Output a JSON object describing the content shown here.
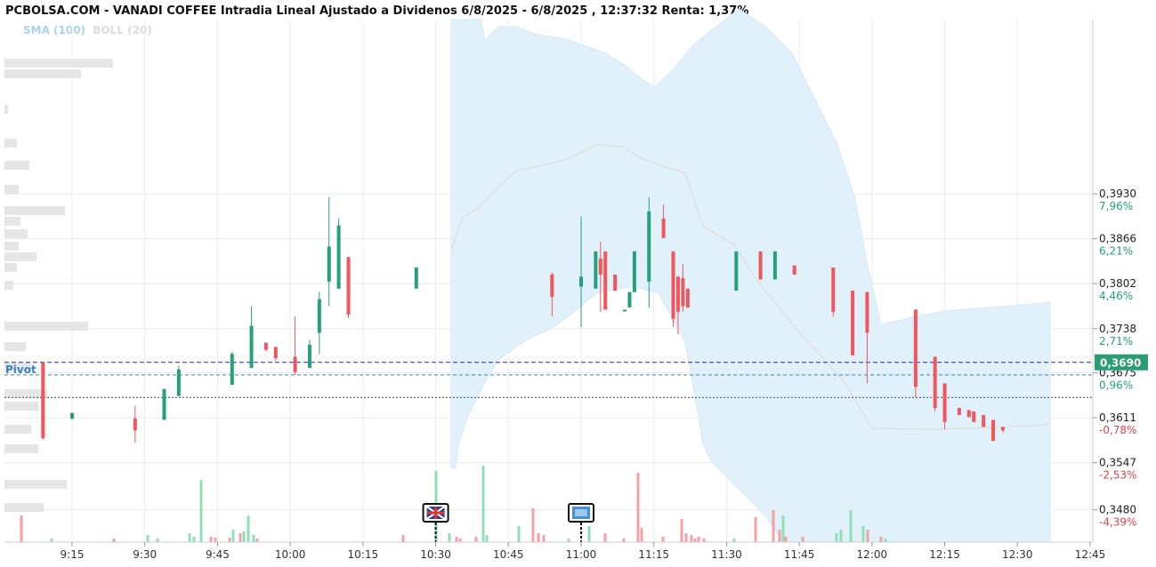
{
  "header": {
    "title": "PCBOLSA.COM - VANADI COFFEE Intradia Lineal Ajustado a Dividenos 6/8/2025 - 6/8/2025 , 12:37:32 Renta: 1,37%",
    "legend_sma": "SMA (100)",
    "legend_boll": "BOLL (20)"
  },
  "colors": {
    "up": "#26a07a",
    "down": "#f0575c",
    "band_fill": "#e1f1fb",
    "band_edge": "#d5e9f6",
    "sma_line": "#e0e0e0",
    "grid": "#ececec",
    "last_price_bg": "#2a9d74",
    "pivot": "#3b82c8",
    "last_line": "#3b3bdb",
    "volume_up": "#8fe0b4",
    "volume_down": "#f5a0a4",
    "profile": "#e6e6e6"
  },
  "chart_data": {
    "type": "candlestick",
    "title": "PCBOLSA.COM - VANADI COFFEE Intradia Lineal Ajustado a Dividenos 6/8/2025 - 6/8/2025 , 12:37:32 Renta: 1,37%",
    "x_ticks": [
      "9:15",
      "9:30",
      "9:45",
      "10:00",
      "10:15",
      "10:30",
      "10:45",
      "11:00",
      "11:15",
      "11:30",
      "11:45",
      "12:00",
      "12:15",
      "12:30",
      "12:45"
    ],
    "xlim_minutes": [
      545,
      768
    ],
    "ylim": [
      0.3455,
      0.395
    ],
    "price_ticks": [
      {
        "value": 0.393,
        "label": "0,3930",
        "pct": "7,96%",
        "dir": "up"
      },
      {
        "value": 0.3866,
        "label": "0,3866",
        "pct": "6,21%",
        "dir": "up"
      },
      {
        "value": 0.3802,
        "label": "0,3802",
        "pct": "4,46%",
        "dir": "up"
      },
      {
        "value": 0.3738,
        "label": "0,3738",
        "pct": "2,71%",
        "dir": "up"
      },
      {
        "value": 0.3675,
        "label": "0,3675",
        "pct": "0,96%",
        "dir": "up"
      },
      {
        "value": 0.3611,
        "label": "0,3611",
        "pct": "-0,78%",
        "dir": "down"
      },
      {
        "value": 0.3547,
        "label": "0,3547",
        "pct": "-2,53%",
        "dir": "down"
      },
      {
        "value": 0.348,
        "label": "0,3480",
        "pct": "-4,39%",
        "dir": "down"
      }
    ],
    "last_price": {
      "value": 0.369,
      "label": "0,3690"
    },
    "pivot": {
      "value": 0.3672,
      "label": "Pivot"
    },
    "reference_level": 0.364,
    "candles": [
      {
        "t": 549,
        "o": 0.369,
        "h": 0.369,
        "l": 0.358,
        "c": 0.3582
      },
      {
        "t": 555,
        "o": 0.361,
        "h": 0.3618,
        "l": 0.3608,
        "c": 0.3618
      },
      {
        "t": 568,
        "o": 0.361,
        "h": 0.3628,
        "l": 0.3575,
        "c": 0.3593
      },
      {
        "t": 574,
        "o": 0.3608,
        "h": 0.3652,
        "l": 0.3608,
        "c": 0.3652
      },
      {
        "t": 577,
        "o": 0.3642,
        "h": 0.3685,
        "l": 0.3642,
        "c": 0.368
      },
      {
        "t": 588,
        "o": 0.3658,
        "h": 0.3705,
        "l": 0.3658,
        "c": 0.3702
      },
      {
        "t": 592,
        "o": 0.3682,
        "h": 0.377,
        "l": 0.3682,
        "c": 0.3742
      },
      {
        "t": 595,
        "o": 0.3718,
        "h": 0.3718,
        "l": 0.3705,
        "c": 0.3708
      },
      {
        "t": 597,
        "o": 0.3712,
        "h": 0.3712,
        "l": 0.3692,
        "c": 0.3696
      },
      {
        "t": 601,
        "o": 0.3698,
        "h": 0.3755,
        "l": 0.3672,
        "c": 0.3676
      },
      {
        "t": 604,
        "o": 0.3682,
        "h": 0.3722,
        "l": 0.3682,
        "c": 0.3715
      },
      {
        "t": 606,
        "o": 0.3732,
        "h": 0.379,
        "l": 0.3702,
        "c": 0.378
      },
      {
        "t": 608,
        "o": 0.3805,
        "h": 0.3925,
        "l": 0.377,
        "c": 0.3855
      },
      {
        "t": 610,
        "o": 0.3795,
        "h": 0.3895,
        "l": 0.3795,
        "c": 0.3885
      },
      {
        "t": 612,
        "o": 0.384,
        "h": 0.384,
        "l": 0.3753,
        "c": 0.3758
      },
      {
        "t": 626,
        "o": 0.3795,
        "h": 0.3825,
        "l": 0.3795,
        "c": 0.3825
      },
      {
        "t": 654,
        "o": 0.3815,
        "h": 0.3818,
        "l": 0.3755,
        "c": 0.3783
      },
      {
        "t": 660,
        "o": 0.3798,
        "h": 0.3898,
        "l": 0.374,
        "c": 0.3812
      },
      {
        "t": 663,
        "o": 0.3795,
        "h": 0.3848,
        "l": 0.3795,
        "c": 0.3848
      },
      {
        "t": 664,
        "o": 0.3838,
        "h": 0.3862,
        "l": 0.3762,
        "c": 0.3815
      },
      {
        "t": 665,
        "o": 0.3848,
        "h": 0.3848,
        "l": 0.3765,
        "c": 0.3765
      },
      {
        "t": 667,
        "o": 0.3815,
        "h": 0.3815,
        "l": 0.3792,
        "c": 0.3792
      },
      {
        "t": 669,
        "o": 0.3765,
        "h": 0.3765,
        "l": 0.3765,
        "c": 0.3765
      },
      {
        "t": 670,
        "o": 0.3768,
        "h": 0.379,
        "l": 0.3768,
        "c": 0.379
      },
      {
        "t": 671,
        "o": 0.379,
        "h": 0.3848,
        "l": 0.379,
        "c": 0.3848
      },
      {
        "t": 674,
        "o": 0.3805,
        "h": 0.3925,
        "l": 0.3768,
        "c": 0.3905
      },
      {
        "t": 677,
        "o": 0.3895,
        "h": 0.3915,
        "l": 0.3867,
        "c": 0.3867
      },
      {
        "t": 679,
        "o": 0.3848,
        "h": 0.3848,
        "l": 0.374,
        "c": 0.3752
      },
      {
        "t": 680,
        "o": 0.3812,
        "h": 0.3812,
        "l": 0.373,
        "c": 0.3762
      },
      {
        "t": 681,
        "o": 0.381,
        "h": 0.383,
        "l": 0.3762,
        "c": 0.377
      },
      {
        "t": 682,
        "o": 0.3795,
        "h": 0.3795,
        "l": 0.3768,
        "c": 0.3768
      },
      {
        "t": 692,
        "o": 0.3792,
        "h": 0.3848,
        "l": 0.3792,
        "c": 0.3848
      },
      {
        "t": 697,
        "o": 0.3848,
        "h": 0.3848,
        "l": 0.3808,
        "c": 0.3808
      },
      {
        "t": 700,
        "o": 0.3808,
        "h": 0.3848,
        "l": 0.3808,
        "c": 0.3848
      },
      {
        "t": 704,
        "o": 0.3828,
        "h": 0.3828,
        "l": 0.3815,
        "c": 0.3815
      },
      {
        "t": 712,
        "o": 0.3825,
        "h": 0.3825,
        "l": 0.3755,
        "c": 0.3762
      },
      {
        "t": 716,
        "o": 0.3792,
        "h": 0.3792,
        "l": 0.37,
        "c": 0.37
      },
      {
        "t": 719,
        "o": 0.379,
        "h": 0.379,
        "l": 0.366,
        "c": 0.3732
      },
      {
        "t": 729,
        "o": 0.3765,
        "h": 0.3765,
        "l": 0.364,
        "c": 0.3655
      },
      {
        "t": 733,
        "o": 0.3698,
        "h": 0.3698,
        "l": 0.362,
        "c": 0.3625
      },
      {
        "t": 735,
        "o": 0.366,
        "h": 0.366,
        "l": 0.3595,
        "c": 0.3605
      },
      {
        "t": 738,
        "o": 0.3625,
        "h": 0.3625,
        "l": 0.3615,
        "c": 0.3615
      },
      {
        "t": 740,
        "o": 0.3622,
        "h": 0.3622,
        "l": 0.3612,
        "c": 0.3612
      },
      {
        "t": 741,
        "o": 0.362,
        "h": 0.362,
        "l": 0.3605,
        "c": 0.3605
      },
      {
        "t": 743,
        "o": 0.3615,
        "h": 0.3615,
        "l": 0.3598,
        "c": 0.3598
      },
      {
        "t": 745,
        "o": 0.3608,
        "h": 0.3608,
        "l": 0.3578,
        "c": 0.3578
      },
      {
        "t": 747,
        "o": 0.3598,
        "h": 0.3598,
        "l": 0.359,
        "c": 0.3593
      }
    ],
    "volume_bars": [
      {
        "x": 24,
        "h": 30,
        "dir": "down"
      },
      {
        "x": 58,
        "h": 4,
        "dir": "up"
      },
      {
        "x": 128,
        "h": 4,
        "dir": "down"
      },
      {
        "x": 166,
        "h": 8,
        "dir": "up"
      },
      {
        "x": 177,
        "h": 4,
        "dir": "up"
      },
      {
        "x": 213,
        "h": 10,
        "dir": "up"
      },
      {
        "x": 218,
        "h": 6,
        "dir": "up"
      },
      {
        "x": 226,
        "h": 70,
        "dir": "up"
      },
      {
        "x": 237,
        "h": 6,
        "dir": "down"
      },
      {
        "x": 242,
        "h": 5,
        "dir": "down"
      },
      {
        "x": 258,
        "h": 5,
        "dir": "down"
      },
      {
        "x": 262,
        "h": 14,
        "dir": "up"
      },
      {
        "x": 270,
        "h": 10,
        "dir": "down"
      },
      {
        "x": 274,
        "h": 12,
        "dir": "up"
      },
      {
        "x": 279,
        "h": 30,
        "dir": "up"
      },
      {
        "x": 285,
        "h": 8,
        "dir": "up"
      },
      {
        "x": 289,
        "h": 4,
        "dir": "down"
      },
      {
        "x": 453,
        "h": 8,
        "dir": "down"
      },
      {
        "x": 490,
        "h": 80,
        "dir": "up"
      },
      {
        "x": 505,
        "h": 10,
        "dir": "up"
      },
      {
        "x": 513,
        "h": 6,
        "dir": "down"
      },
      {
        "x": 517,
        "h": 4,
        "dir": "down"
      },
      {
        "x": 535,
        "h": 6,
        "dir": "down"
      },
      {
        "x": 543,
        "h": 86,
        "dir": "up"
      },
      {
        "x": 547,
        "h": 8,
        "dir": "up"
      },
      {
        "x": 583,
        "h": 18,
        "dir": "up"
      },
      {
        "x": 599,
        "h": 38,
        "dir": "down"
      },
      {
        "x": 605,
        "h": 10,
        "dir": "down"
      },
      {
        "x": 611,
        "h": 8,
        "dir": "down"
      },
      {
        "x": 639,
        "h": 4,
        "dir": "up"
      },
      {
        "x": 662,
        "h": 18,
        "dir": "up"
      },
      {
        "x": 680,
        "h": 10,
        "dir": "down"
      },
      {
        "x": 701,
        "h": 4,
        "dir": "down"
      },
      {
        "x": 717,
        "h": 78,
        "dir": "down"
      },
      {
        "x": 721,
        "h": 16,
        "dir": "down"
      },
      {
        "x": 745,
        "h": 6,
        "dir": "down"
      },
      {
        "x": 766,
        "h": 26,
        "dir": "down"
      },
      {
        "x": 771,
        "h": 10,
        "dir": "down"
      },
      {
        "x": 777,
        "h": 8,
        "dir": "down"
      },
      {
        "x": 781,
        "h": 4,
        "dir": "down"
      },
      {
        "x": 785,
        "h": 6,
        "dir": "down"
      },
      {
        "x": 791,
        "h": 4,
        "dir": "down"
      },
      {
        "x": 825,
        "h": 4,
        "dir": "up"
      },
      {
        "x": 849,
        "h": 28,
        "dir": "down"
      },
      {
        "x": 869,
        "h": 36,
        "dir": "down"
      },
      {
        "x": 876,
        "h": 14,
        "dir": "down"
      },
      {
        "x": 880,
        "h": 30,
        "dir": "up"
      },
      {
        "x": 883,
        "h": 6,
        "dir": "down"
      },
      {
        "x": 902,
        "h": 6,
        "dir": "down"
      },
      {
        "x": 940,
        "h": 10,
        "dir": "up"
      },
      {
        "x": 945,
        "h": 14,
        "dir": "up"
      },
      {
        "x": 956,
        "h": 36,
        "dir": "up"
      },
      {
        "x": 970,
        "h": 18,
        "dir": "up"
      },
      {
        "x": 975,
        "h": 14,
        "dir": "down"
      },
      {
        "x": 990,
        "h": 6,
        "dir": "down"
      },
      {
        "x": 995,
        "h": 4,
        "dir": "up"
      }
    ],
    "profile_bars": [
      {
        "y": 66,
        "w": 122
      },
      {
        "y": 78,
        "w": 86
      },
      {
        "y": 118,
        "w": 4
      },
      {
        "y": 156,
        "w": 14
      },
      {
        "y": 181,
        "w": 28
      },
      {
        "y": 208,
        "w": 16
      },
      {
        "y": 232,
        "w": 68
      },
      {
        "y": 244,
        "w": 18
      },
      {
        "y": 258,
        "w": 26
      },
      {
        "y": 272,
        "w": 16
      },
      {
        "y": 284,
        "w": 36
      },
      {
        "y": 296,
        "w": 14
      },
      {
        "y": 316,
        "w": 10
      },
      {
        "y": 362,
        "w": 94
      },
      {
        "y": 385,
        "w": 24
      },
      {
        "y": 408,
        "w": 30
      },
      {
        "y": 438,
        "w": 48
      },
      {
        "y": 452,
        "w": 38
      },
      {
        "y": 478,
        "w": 30
      },
      {
        "y": 500,
        "w": 38
      },
      {
        "y": 540,
        "w": 70
      },
      {
        "y": 566,
        "w": 44
      }
    ]
  }
}
